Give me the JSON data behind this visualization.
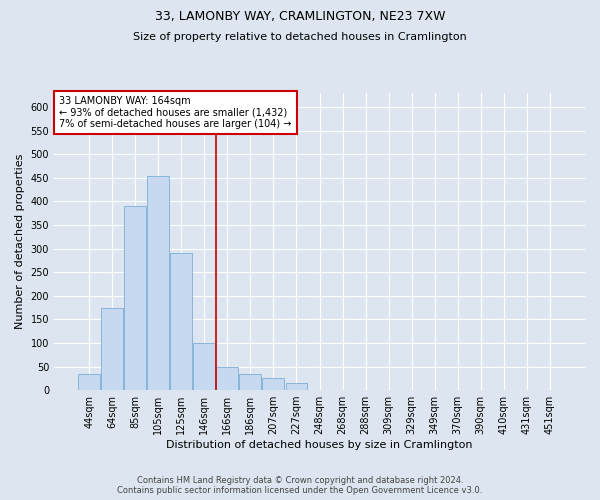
{
  "title": "33, LAMONBY WAY, CRAMLINGTON, NE23 7XW",
  "subtitle": "Size of property relative to detached houses in Cramlington",
  "xlabel": "Distribution of detached houses by size in Cramlington",
  "ylabel": "Number of detached properties",
  "footer_line1": "Contains HM Land Registry data © Crown copyright and database right 2024.",
  "footer_line2": "Contains public sector information licensed under the Open Government Licence v3.0.",
  "bin_labels": [
    "44sqm",
    "64sqm",
    "85sqm",
    "105sqm",
    "125sqm",
    "146sqm",
    "166sqm",
    "186sqm",
    "207sqm",
    "227sqm",
    "248sqm",
    "268sqm",
    "288sqm",
    "309sqm",
    "329sqm",
    "349sqm",
    "370sqm",
    "390sqm",
    "410sqm",
    "431sqm",
    "451sqm"
  ],
  "bar_values": [
    35,
    175,
    390,
    455,
    290,
    100,
    50,
    35,
    25,
    15,
    1,
    0,
    1,
    0,
    0,
    1,
    0,
    0,
    1,
    0,
    1
  ],
  "bar_color": "#c6d9f0",
  "bar_edge_color": "#7bafd4",
  "vline_x": 5.5,
  "vline_color": "#cc0000",
  "annotation_text": "33 LAMONBY WAY: 164sqm\n← 93% of detached houses are smaller (1,432)\n7% of semi-detached houses are larger (104) →",
  "annotation_box_color": "#ffffff",
  "annotation_box_edge": "#cc0000",
  "ylim": [
    0,
    630
  ],
  "yticks": [
    0,
    50,
    100,
    150,
    200,
    250,
    300,
    350,
    400,
    450,
    500,
    550,
    600
  ],
  "bg_color": "#dde6f0",
  "plot_bg_color": "#dde6f0",
  "grid_color": "#ffffff",
  "title_fontsize": 9,
  "subtitle_fontsize": 8,
  "axis_label_fontsize": 8,
  "tick_fontsize": 7,
  "annotation_fontsize": 7,
  "footer_fontsize": 6
}
